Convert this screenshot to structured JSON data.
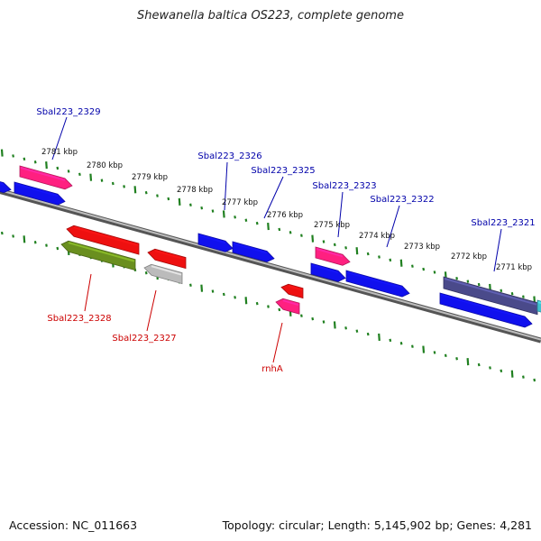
{
  "title": "Shewanella baltica OS223, complete genome",
  "footer": {
    "accession": "Accession: NC_011663",
    "summary": "Topology: circular; Length: 5,145,902 bp; Genes: 4,281"
  },
  "colors": {
    "plus_label": "#0000aa",
    "minus_label": "#cc0000",
    "ticks": "#208020",
    "backbone": "#808080"
  },
  "kbp_labels": [
    "2781 kbp",
    "2780 kbp",
    "2779 kbp",
    "2778 kbp",
    "2777 kbp",
    "2776 kbp",
    "2775 kbp",
    "2774 kbp",
    "2773 kbp",
    "2772 kbp",
    "2771 kbp"
  ],
  "genes": [
    {
      "id": "g1",
      "strand": "outer-plus",
      "color": "#1010ee"
    },
    {
      "id": "g2",
      "strand": "outer-plus",
      "color": "#ff2080",
      "label": "Sbal223_2329"
    },
    {
      "id": "g3",
      "strand": "inner-plus",
      "color": "#1010ee"
    },
    {
      "id": "g4",
      "strand": "inner-minus",
      "color": "#ee1010"
    },
    {
      "id": "g5",
      "strand": "outer-minus",
      "color": "#6a8f1f",
      "label": "Sbal223_2328"
    },
    {
      "id": "g6",
      "strand": "inner-minus",
      "color": "#ee1010"
    },
    {
      "id": "g7",
      "strand": "outer-minus",
      "color": "#bbbbbb",
      "label": "Sbal223_2327"
    },
    {
      "id": "g8",
      "strand": "inner-plus",
      "color": "#1010ee",
      "label": "Sbal223_2326"
    },
    {
      "id": "g9",
      "strand": "inner-plus",
      "color": "#1010ee",
      "label": "Sbal223_2325"
    },
    {
      "id": "g10",
      "strand": "inner-minus",
      "color": "#ee1010"
    },
    {
      "id": "g11",
      "strand": "outer-minus",
      "color": "#ff2080",
      "label": "rnhA"
    },
    {
      "id": "g12",
      "strand": "outer-plus",
      "color": "#ff2080",
      "label": "Sbal223_2323"
    },
    {
      "id": "g13",
      "strand": "inner-plus",
      "color": "#1010ee"
    },
    {
      "id": "g14",
      "strand": "inner-plus",
      "color": "#1010ee",
      "label": "Sbal223_2322"
    },
    {
      "id": "g15",
      "strand": "outer-plus",
      "color": "#4a4a8a",
      "label": "Sbal223_2321"
    },
    {
      "id": "g16",
      "strand": "inner-plus",
      "color": "#1010ee"
    },
    {
      "id": "g17",
      "strand": "outer-plus",
      "color": "#40c0d0"
    }
  ]
}
